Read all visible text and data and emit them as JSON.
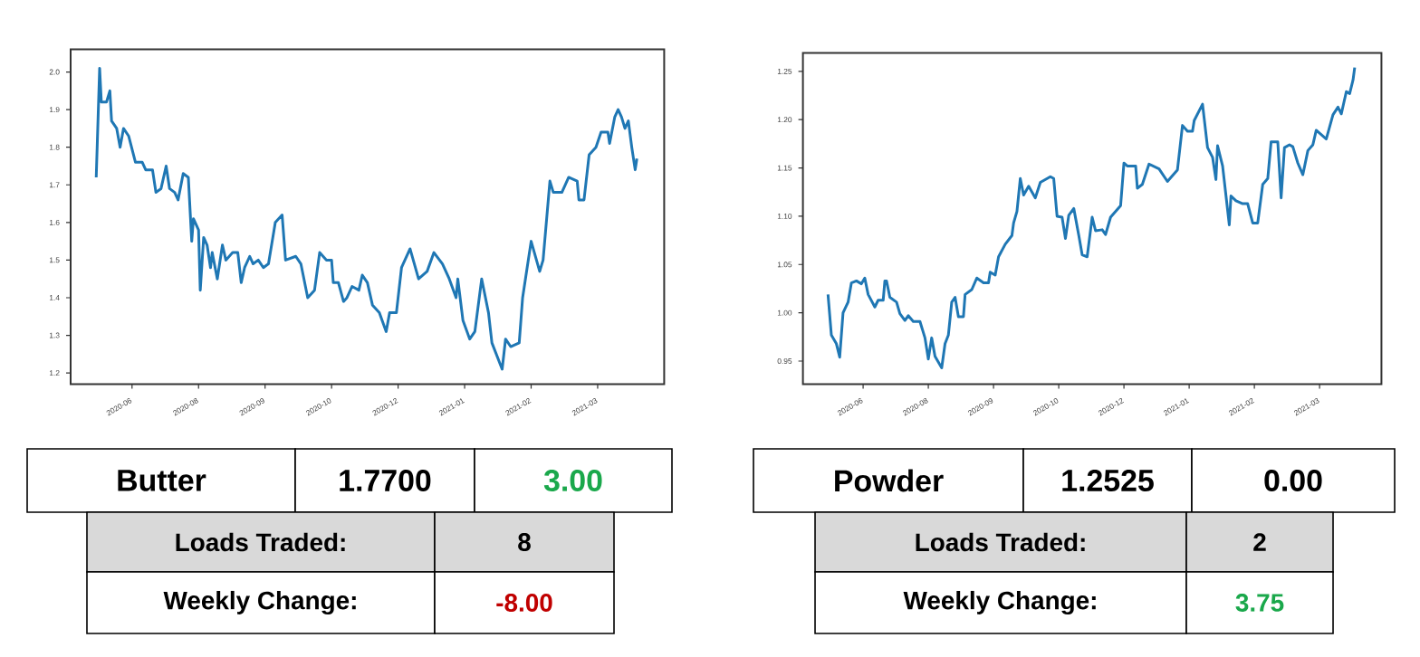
{
  "chart_data": [
    {
      "type": "line",
      "color": "#1f77b4",
      "xlim": [
        "2020-05-24",
        "2021-05-07"
      ],
      "ylim": [
        1.17,
        2.06
      ],
      "xticks": [
        {
          "value": "2020-06-29",
          "label": "2020-06"
        },
        {
          "value": "2020-08-07",
          "label": "2020-08"
        },
        {
          "value": "2020-09-15",
          "label": "2020-09"
        },
        {
          "value": "2020-10-24",
          "label": "2020-10"
        },
        {
          "value": "2020-12-02",
          "label": "2020-12"
        },
        {
          "value": "2021-01-10",
          "label": "2021-01"
        },
        {
          "value": "2021-02-18",
          "label": "2021-02"
        },
        {
          "value": "2021-03-29",
          "label": "2021-03"
        }
      ],
      "yticks": [
        1.2,
        1.3,
        1.4,
        1.5,
        1.6,
        1.7,
        1.8,
        1.9,
        {
          "value": 2,
          "label": "2.0"
        }
      ],
      "x": [
        "2020-06-08",
        "2020-06-10",
        "2020-06-11",
        "2020-06-14",
        "2020-06-16",
        "2020-06-17",
        "2020-06-20",
        "2020-06-22",
        "2020-06-24",
        "2020-06-27",
        "2020-07-01",
        "2020-07-05",
        "2020-07-07",
        "2020-07-11",
        "2020-07-13",
        "2020-07-16",
        "2020-07-19",
        "2020-07-21",
        "2020-07-24",
        "2020-07-26",
        "2020-07-29",
        "2020-08-01",
        "2020-08-03",
        "2020-08-04",
        "2020-08-07",
        "2020-08-08",
        "2020-08-10",
        "2020-08-12",
        "2020-08-14",
        "2020-08-15",
        "2020-08-18",
        "2020-08-21",
        "2020-08-23",
        "2020-08-27",
        "2020-08-30",
        "2020-09-01",
        "2020-09-03",
        "2020-09-06",
        "2020-09-08",
        "2020-09-11",
        "2020-09-14",
        "2020-09-17",
        "2020-09-21",
        "2020-09-25",
        "2020-09-27",
        "2020-10-03",
        "2020-10-06",
        "2020-10-10",
        "2020-10-14",
        "2020-10-17",
        "2020-10-21",
        "2020-10-24",
        "2020-10-25",
        "2020-10-28",
        "2020-10-31",
        "2020-11-02",
        "2020-11-05",
        "2020-11-09",
        "2020-11-11",
        "2020-11-14",
        "2020-11-17",
        "2020-11-21",
        "2020-11-25",
        "2020-11-27",
        "2020-12-01",
        "2020-12-04",
        "2020-12-09",
        "2020-12-14",
        "2020-12-19",
        "2020-12-23",
        "2020-12-28",
        "2021-01-01",
        "2021-01-05",
        "2021-01-06",
        "2021-01-09",
        "2021-01-13",
        "2021-01-16",
        "2021-01-20",
        "2021-01-24",
        "2021-01-26",
        "2021-02-01",
        "2021-02-03",
        "2021-02-06",
        "2021-02-11",
        "2021-02-13",
        "2021-02-16",
        "2021-02-18",
        "2021-02-23",
        "2021-02-25",
        "2021-03-01",
        "2021-03-03",
        "2021-03-08",
        "2021-03-12",
        "2021-03-17",
        "2021-03-18",
        "2021-03-21",
        "2021-03-24",
        "2021-03-28",
        "2021-03-31",
        "2021-04-04",
        "2021-04-05",
        "2021-04-08",
        "2021-04-10",
        "2021-04-12",
        "2021-04-14",
        "2021-04-16",
        "2021-04-18",
        "2021-04-20",
        "2021-04-21"
      ],
      "values": [
        1.72,
        2.01,
        1.92,
        1.92,
        1.95,
        1.87,
        1.85,
        1.8,
        1.85,
        1.83,
        1.76,
        1.76,
        1.74,
        1.74,
        1.68,
        1.69,
        1.75,
        1.69,
        1.68,
        1.66,
        1.73,
        1.72,
        1.55,
        1.61,
        1.58,
        1.42,
        1.56,
        1.54,
        1.48,
        1.52,
        1.45,
        1.54,
        1.5,
        1.52,
        1.52,
        1.44,
        1.48,
        1.51,
        1.49,
        1.5,
        1.48,
        1.49,
        1.6,
        1.62,
        1.5,
        1.51,
        1.49,
        1.4,
        1.42,
        1.52,
        1.5,
        1.5,
        1.44,
        1.44,
        1.39,
        1.4,
        1.43,
        1.42,
        1.46,
        1.44,
        1.38,
        1.36,
        1.31,
        1.36,
        1.36,
        1.48,
        1.53,
        1.45,
        1.47,
        1.52,
        1.49,
        1.45,
        1.4,
        1.45,
        1.34,
        1.29,
        1.31,
        1.45,
        1.36,
        1.28,
        1.21,
        1.29,
        1.27,
        1.28,
        1.4,
        1.49,
        1.55,
        1.47,
        1.5,
        1.71,
        1.68,
        1.68,
        1.72,
        1.71,
        1.66,
        1.66,
        1.78,
        1.8,
        1.84,
        1.84,
        1.81,
        1.88,
        1.9,
        1.88,
        1.85,
        1.87,
        1.8,
        1.74,
        1.77
      ]
    },
    {
      "type": "other",
      "annotations": [
        "Butter",
        "1.7700",
        "3.00",
        "Loads Traded:",
        "8",
        "Weekly Change:",
        "-8.00"
      ],
      "colors": [
        "#000000",
        "#000000",
        "#1aa84b",
        "#000000",
        "#000000",
        "#000000",
        "#c00000"
      ]
    },
    {
      "type": "line",
      "color": "#1f77b4",
      "xlim": [
        "2020-05-24",
        "2021-05-05"
      ],
      "ylim": [
        0.926,
        1.269
      ],
      "xticks": [
        {
          "value": "2020-06-29",
          "label": "2020-06"
        },
        {
          "value": "2020-08-07",
          "label": "2020-08"
        },
        {
          "value": "2020-09-15",
          "label": "2020-09"
        },
        {
          "value": "2020-10-24",
          "label": "2020-10"
        },
        {
          "value": "2020-12-02",
          "label": "2020-12"
        },
        {
          "value": "2021-01-10",
          "label": "2021-01"
        },
        {
          "value": "2021-02-18",
          "label": "2021-02"
        },
        {
          "value": "2021-03-29",
          "label": "2021-03"
        }
      ],
      "yticks": [
        0.95,
        {
          "value": 1.0,
          "label": "1.00"
        },
        1.05,
        {
          "value": 1.1,
          "label": "1.10"
        },
        1.15,
        {
          "value": 1.2,
          "label": "1.20"
        },
        1.25
      ],
      "x": [
        "2020-06-08",
        "2020-06-10",
        "2020-06-13",
        "2020-06-15",
        "2020-06-17",
        "2020-06-20",
        "2020-06-22",
        "2020-06-25",
        "2020-06-28",
        "2020-06-30",
        "2020-07-02",
        "2020-07-06",
        "2020-07-08",
        "2020-07-11",
        "2020-07-12",
        "2020-07-13",
        "2020-07-15",
        "2020-07-19",
        "2020-07-21",
        "2020-07-24",
        "2020-07-26",
        "2020-07-29",
        "2020-08-02",
        "2020-08-05",
        "2020-08-07",
        "2020-08-09",
        "2020-08-11",
        "2020-08-15",
        "2020-08-17",
        "2020-08-19",
        "2020-08-21",
        "2020-08-23",
        "2020-08-25",
        "2020-08-28",
        "2020-08-29",
        "2020-09-02",
        "2020-09-05",
        "2020-09-09",
        "2020-09-12",
        "2020-09-13",
        "2020-09-16",
        "2020-09-18",
        "2020-09-22",
        "2020-09-26",
        "2020-09-27",
        "2020-09-29",
        "2020-10-01",
        "2020-10-03",
        "2020-10-06",
        "2020-10-10",
        "2020-10-13",
        "2020-10-19",
        "2020-10-21",
        "2020-10-23",
        "2020-10-26",
        "2020-10-28",
        "2020-10-30",
        "2020-11-02",
        "2020-11-05",
        "2020-11-07",
        "2020-11-10",
        "2020-11-13",
        "2020-11-15",
        "2020-11-19",
        "2020-11-21",
        "2020-11-24",
        "2020-11-30",
        "2020-12-02",
        "2020-12-04",
        "2020-12-09",
        "2020-12-10",
        "2020-12-13",
        "2020-12-17",
        "2020-12-23",
        "2020-12-28",
        "2021-01-03",
        "2021-01-06",
        "2021-01-09",
        "2021-01-12",
        "2021-01-13",
        "2021-01-18",
        "2021-01-21",
        "2021-01-24",
        "2021-01-26",
        "2021-01-27",
        "2021-01-30",
        "2021-02-03",
        "2021-02-04",
        "2021-02-07",
        "2021-02-11",
        "2021-02-14",
        "2021-02-17",
        "2021-02-20",
        "2021-02-23",
        "2021-02-26",
        "2021-02-28",
        "2021-03-02",
        "2021-03-04",
        "2021-03-06",
        "2021-03-08",
        "2021-03-11",
        "2021-03-13",
        "2021-03-16",
        "2021-03-19",
        "2021-03-22",
        "2021-03-25",
        "2021-03-27",
        "2021-03-31",
        "2021-04-02",
        "2021-04-06",
        "2021-04-09",
        "2021-04-11",
        "2021-04-14",
        "2021-04-16",
        "2021-04-18",
        "2021-04-19"
      ],
      "values": [
        1.019,
        0.977,
        0.968,
        0.954,
        1.0,
        1.011,
        1.031,
        1.033,
        1.03,
        1.036,
        1.019,
        1.006,
        1.013,
        1.013,
        1.033,
        1.033,
        1.016,
        1.011,
        0.999,
        0.992,
        0.997,
        0.991,
        0.991,
        0.974,
        0.952,
        0.974,
        0.955,
        0.943,
        0.968,
        0.977,
        1.011,
        1.016,
        0.996,
        0.996,
        1.019,
        1.024,
        1.036,
        1.031,
        1.031,
        1.042,
        1.039,
        1.058,
        1.071,
        1.08,
        1.093,
        1.105,
        1.139,
        1.122,
        1.131,
        1.119,
        1.135,
        1.141,
        1.139,
        1.1,
        1.099,
        1.077,
        1.101,
        1.108,
        1.08,
        1.06,
        1.058,
        1.099,
        1.085,
        1.086,
        1.081,
        1.099,
        1.111,
        1.155,
        1.152,
        1.152,
        1.129,
        1.133,
        1.154,
        1.149,
        1.136,
        1.148,
        1.194,
        1.188,
        1.188,
        1.199,
        1.216,
        1.171,
        1.161,
        1.138,
        1.173,
        1.152,
        1.091,
        1.121,
        1.116,
        1.113,
        1.113,
        1.093,
        1.093,
        1.133,
        1.139,
        1.177,
        1.177,
        1.177,
        1.119,
        1.171,
        1.174,
        1.172,
        1.155,
        1.143,
        1.168,
        1.174,
        1.189,
        1.183,
        1.18,
        1.205,
        1.213,
        1.206,
        1.229,
        1.227,
        1.241,
        1.254
      ]
    },
    {
      "type": "other",
      "annotations": [
        "Powder",
        "1.2525",
        "0.00",
        "Loads Traded:",
        "2",
        "Weekly Change:",
        "3.75"
      ],
      "colors": [
        "#000000",
        "#000000",
        "#000000",
        "#000000",
        "#000000",
        "#000000",
        "#1aa84b"
      ]
    }
  ]
}
